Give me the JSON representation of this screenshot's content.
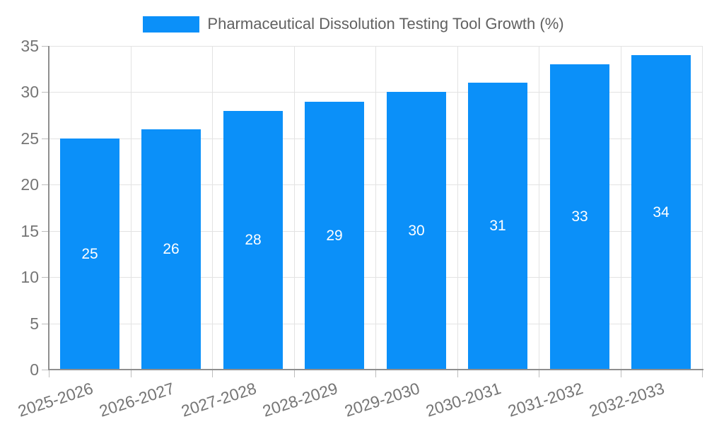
{
  "chart_data": {
    "type": "bar",
    "title": "Pharmaceutical Dissolution Testing Tool Growth (%)",
    "categories": [
      "2025-2026",
      "2026-2027",
      "2027-2028",
      "2028-2029",
      "2029-2030",
      "2030-2031",
      "2031-2032",
      "2032-2033"
    ],
    "values": [
      25,
      26,
      28,
      29,
      30,
      31,
      33,
      34
    ],
    "xlabel": "",
    "ylabel": "",
    "ylim": [
      0,
      35
    ],
    "yticks": [
      0,
      5,
      10,
      15,
      20,
      25,
      30,
      35
    ],
    "grid": true,
    "legend_position": "top-center",
    "bar_color": "#0B90F9",
    "value_label_color": "#FFFFFF",
    "axis_label_color": "#757575",
    "grid_color": "#E3E3E3",
    "axis_line_color": "#8F8F8F"
  }
}
